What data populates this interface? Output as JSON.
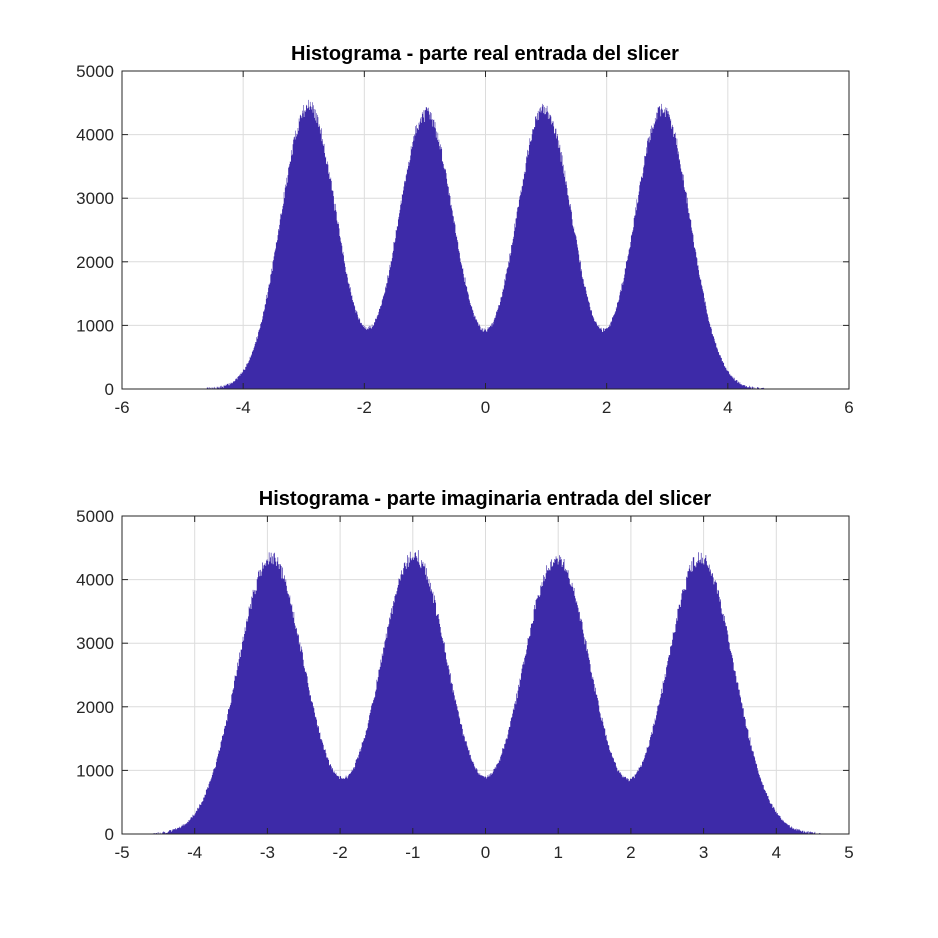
{
  "chart_data": [
    {
      "type": "bar",
      "subtype": "histogram",
      "title": "Histograma - parte real entrada del slicer",
      "xlabel": "",
      "ylabel": "",
      "xlim": [
        -6,
        6
      ],
      "ylim": [
        0,
        5000
      ],
      "xticks": [
        "-6",
        "-4",
        "-2",
        "0",
        "2",
        "4",
        "6"
      ],
      "yticks": [
        "0",
        "1000",
        "2000",
        "3000",
        "4000",
        "5000"
      ],
      "grid": true,
      "bar_color": "#3d2aa8",
      "data_range": [
        -4.6,
        4.6
      ],
      "bin_width": 0.0092,
      "peaks": [
        {
          "center": -2.92,
          "height": 4450
        },
        {
          "center": -0.98,
          "height": 4330
        },
        {
          "center": 0.97,
          "height": 4400
        },
        {
          "center": 2.92,
          "height": 4400
        }
      ],
      "valleys": [
        {
          "x": -1.96,
          "height": 850
        },
        {
          "x": 0.0,
          "height": 840
        },
        {
          "x": 1.96,
          "height": 880
        }
      ]
    },
    {
      "type": "bar",
      "subtype": "histogram",
      "title": "Histograma - parte imaginaria entrada del slicer",
      "xlabel": "",
      "ylabel": "",
      "xlim": [
        -5,
        5
      ],
      "ylim": [
        0,
        5000
      ],
      "xticks": [
        "-5",
        "-4",
        "-3",
        "-2",
        "-1",
        "0",
        "1",
        "2",
        "3",
        "4",
        "5"
      ],
      "yticks": [
        "0",
        "1000",
        "2000",
        "3000",
        "4000",
        "5000"
      ],
      "grid": true,
      "bar_color": "#3d2aa8",
      "data_range": [
        -4.6,
        4.6
      ],
      "bin_width": 0.0092,
      "peaks": [
        {
          "center": -2.95,
          "height": 4330
        },
        {
          "center": -0.98,
          "height": 4370
        },
        {
          "center": 0.98,
          "height": 4350
        },
        {
          "center": 2.96,
          "height": 4350
        }
      ],
      "valleys": [
        {
          "x": -1.96,
          "height": 800
        },
        {
          "x": 0.0,
          "height": 860
        },
        {
          "x": 1.96,
          "height": 870
        }
      ]
    }
  ]
}
